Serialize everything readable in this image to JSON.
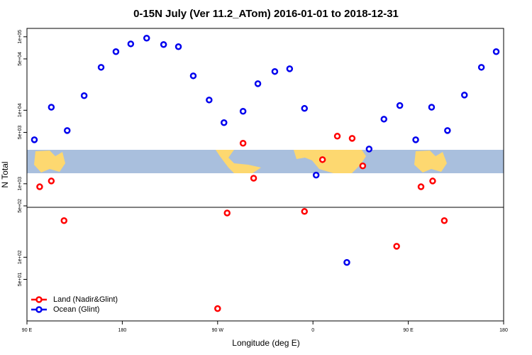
{
  "chart_data": {
    "type": "scatter",
    "title": "0-15N July (Ver 11.2_ATom)   2016-01-01 to 2018-12-31",
    "x_label": "Longitude (deg E)",
    "y_label": "N Total",
    "log_y": true,
    "xlim": [
      90,
      540
    ],
    "ylim": [
      13.6,
      130000
    ],
    "xticks": [
      {
        "value": 90,
        "label": "90 E"
      },
      180,
      {
        "value": 270,
        "label": "90 W"
      },
      {
        "value": 360,
        "label": "0"
      },
      {
        "value": 450,
        "label": "90 E"
      },
      {
        "value": 540,
        "label": "180"
      }
    ],
    "yticks": [
      {
        "value": 100000,
        "label": "1e+05"
      },
      {
        "value": 50000,
        "label": "5e+04"
      },
      {
        "value": 10000,
        "label": "1e+04"
      },
      {
        "value": 5000,
        "label": "5e+03"
      },
      {
        "value": 1000,
        "label": "1e+03"
      },
      {
        "value": 500,
        "label": "5e+02"
      },
      {
        "value": 100,
        "label": "1e+02"
      },
      {
        "value": 50,
        "label": "5e+01"
      }
    ],
    "legend": "bottom-left",
    "series": [
      {
        "name": "Land (Nadir&Glint)",
        "color": "#ff0000",
        "x": [
          102,
          113,
          125,
          270,
          279,
          294,
          304,
          352,
          369,
          383,
          397,
          407,
          439,
          462,
          473,
          484
        ],
        "values": [
          910,
          1090,
          315,
          20,
          400,
          3560,
          1190,
          420,
          2130,
          4440,
          4150,
          1750,
          141,
          910,
          1090,
          315
        ]
      },
      {
        "name": "Ocean (Glint)",
        "color": "#0000ee",
        "x": [
          97,
          113,
          128,
          144,
          160,
          174,
          188,
          203,
          219,
          233,
          247,
          262,
          276,
          294,
          308,
          324,
          338,
          352,
          363,
          392,
          413,
          427,
          442,
          457,
          472,
          487,
          503,
          519,
          533
        ],
        "values": [
          3970,
          11000,
          5300,
          15800,
          38400,
          62700,
          80000,
          95700,
          78400,
          73300,
          29400,
          13800,
          6780,
          9680,
          23000,
          33700,
          36700,
          10600,
          1310,
          85,
          2970,
          7570,
          11600,
          3970,
          11000,
          5300,
          16100,
          38400,
          62700
        ]
      }
    ]
  }
}
